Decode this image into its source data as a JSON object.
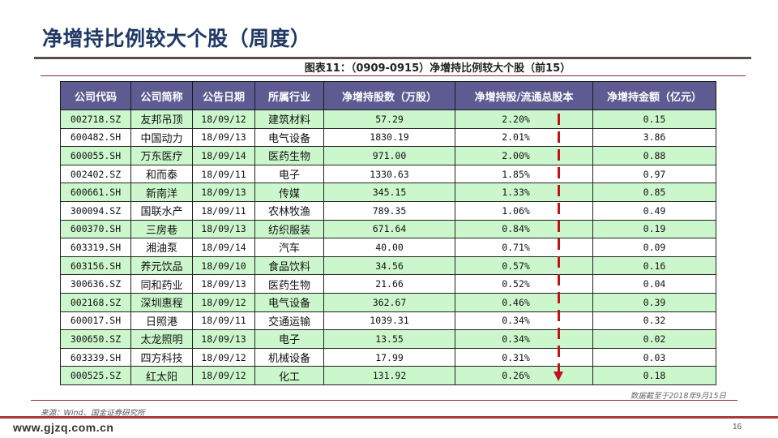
{
  "slide": {
    "title": "净增持比例较大个股（周度）",
    "caption": "图表11：（0909-0915）净增持比例较大个股（前15）",
    "footnote": "数据截至于2018年9月15日",
    "source": "来源：Wind、国金证券研究所",
    "website": "www.gjzq.com.cn",
    "page_number": "16"
  },
  "colors": {
    "title": "#1f3864",
    "header_bg": "#5e5b93",
    "row_green": "#ccf7cc",
    "arrow": "#c0141c"
  },
  "table": {
    "headers": [
      "公司代码",
      "公司简称",
      "公告日期",
      "所属行业",
      "净增持股数（万股）",
      "净增持股/流通总股本",
      "净增持金额（亿元）"
    ],
    "rows": [
      {
        "code": "002718.SZ",
        "name": "友邦吊顶",
        "date": "18/09/12",
        "industry": "建筑材料",
        "shares": "57.29",
        "ratio": "2.20%",
        "amount": "0.15"
      },
      {
        "code": "600482.SH",
        "name": "中国动力",
        "date": "18/09/13",
        "industry": "电气设备",
        "shares": "1830.19",
        "ratio": "2.01%",
        "amount": "3.86"
      },
      {
        "code": "600055.SH",
        "name": "万东医疗",
        "date": "18/09/14",
        "industry": "医药生物",
        "shares": "971.00",
        "ratio": "2.00%",
        "amount": "0.88"
      },
      {
        "code": "002402.SZ",
        "name": "和而泰",
        "date": "18/09/11",
        "industry": "电子",
        "shares": "1330.63",
        "ratio": "1.85%",
        "amount": "0.97"
      },
      {
        "code": "600661.SH",
        "name": "新南洋",
        "date": "18/09/13",
        "industry": "传媒",
        "shares": "345.15",
        "ratio": "1.33%",
        "amount": "0.85"
      },
      {
        "code": "300094.SZ",
        "name": "国联水产",
        "date": "18/09/11",
        "industry": "农林牧渔",
        "shares": "789.35",
        "ratio": "1.06%",
        "amount": "0.49"
      },
      {
        "code": "600370.SH",
        "name": "三房巷",
        "date": "18/09/13",
        "industry": "纺织服装",
        "shares": "671.64",
        "ratio": "0.84%",
        "amount": "0.19"
      },
      {
        "code": "603319.SH",
        "name": "湘油泵",
        "date": "18/09/14",
        "industry": "汽车",
        "shares": "40.00",
        "ratio": "0.71%",
        "amount": "0.09"
      },
      {
        "code": "603156.SH",
        "name": "养元饮品",
        "date": "18/09/10",
        "industry": "食品饮料",
        "shares": "34.56",
        "ratio": "0.57%",
        "amount": "0.16"
      },
      {
        "code": "300636.SZ",
        "name": "同和药业",
        "date": "18/09/13",
        "industry": "医药生物",
        "shares": "21.66",
        "ratio": "0.52%",
        "amount": "0.04"
      },
      {
        "code": "002168.SZ",
        "name": "深圳惠程",
        "date": "18/09/12",
        "industry": "电气设备",
        "shares": "362.67",
        "ratio": "0.46%",
        "amount": "0.39"
      },
      {
        "code": "600017.SH",
        "name": "日照港",
        "date": "18/09/11",
        "industry": "交通运输",
        "shares": "1039.31",
        "ratio": "0.34%",
        "amount": "0.32"
      },
      {
        "code": "300650.SZ",
        "name": "太龙照明",
        "date": "18/09/13",
        "industry": "电子",
        "shares": "13.55",
        "ratio": "0.34%",
        "amount": "0.02"
      },
      {
        "code": "603339.SH",
        "name": "四方科技",
        "date": "18/09/12",
        "industry": "机械设备",
        "shares": "17.99",
        "ratio": "0.31%",
        "amount": "0.03"
      },
      {
        "code": "000525.SZ",
        "name": "红太阳",
        "date": "18/09/12",
        "industry": "化工",
        "shares": "131.92",
        "ratio": "0.26%",
        "amount": "0.18"
      }
    ]
  }
}
